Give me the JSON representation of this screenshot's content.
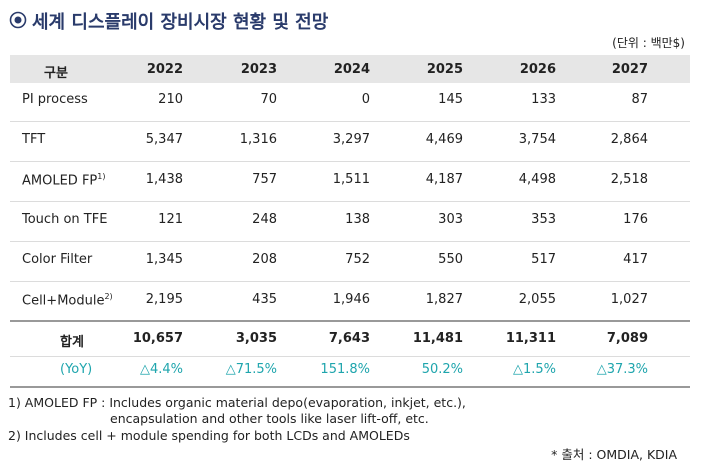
{
  "header": {
    "title": "세계 디스플레이 장비시장 현황 및 전망",
    "unit": "(단위 : 백만$)"
  },
  "table": {
    "columns": [
      "구분",
      "2022",
      "2023",
      "2024",
      "2025",
      "2026",
      "2027"
    ],
    "rows": [
      {
        "label": "PI process",
        "cells": [
          "210",
          "70",
          "0",
          "145",
          "133",
          "87"
        ]
      },
      {
        "label": "TFT",
        "cells": [
          "5,347",
          "1,316",
          "3,297",
          "4,469",
          "3,754",
          "2,864"
        ]
      },
      {
        "label": "AMOLED FP",
        "note": "1)",
        "cells": [
          "1,438",
          "757",
          "1,511",
          "4,187",
          "4,498",
          "2,518"
        ]
      },
      {
        "label": "Touch on TFE",
        "cells": [
          "121",
          "248",
          "138",
          "303",
          "353",
          "176"
        ]
      },
      {
        "label": "Color Filter",
        "cells": [
          "1,345",
          "208",
          "752",
          "550",
          "517",
          "417"
        ]
      },
      {
        "label": "Cell+Module",
        "note": "2)",
        "cells": [
          "2,195",
          "435",
          "1,946",
          "1,827",
          "2,055",
          "1,027"
        ]
      }
    ],
    "total": {
      "label": "합계",
      "cells": [
        "10,657",
        "3,035",
        "7,643",
        "11,481",
        "11,311",
        "7,089"
      ]
    },
    "yoy": {
      "label": "(YoY)",
      "cells": [
        "△4.4%",
        "△71.5%",
        "151.8%",
        "50.2%",
        "△1.5%",
        "△37.3%"
      ]
    }
  },
  "footnotes": [
    "1) AMOLED FP : Includes organic material depo(evaporation, inkjet, etc.),",
    "encapsulation and other tools like laser lift-off, etc.",
    "2) Includes cell + module spending for both LCDs and AMOLEDs"
  ],
  "source": "* 출처 : OMDIA, KDIA"
}
